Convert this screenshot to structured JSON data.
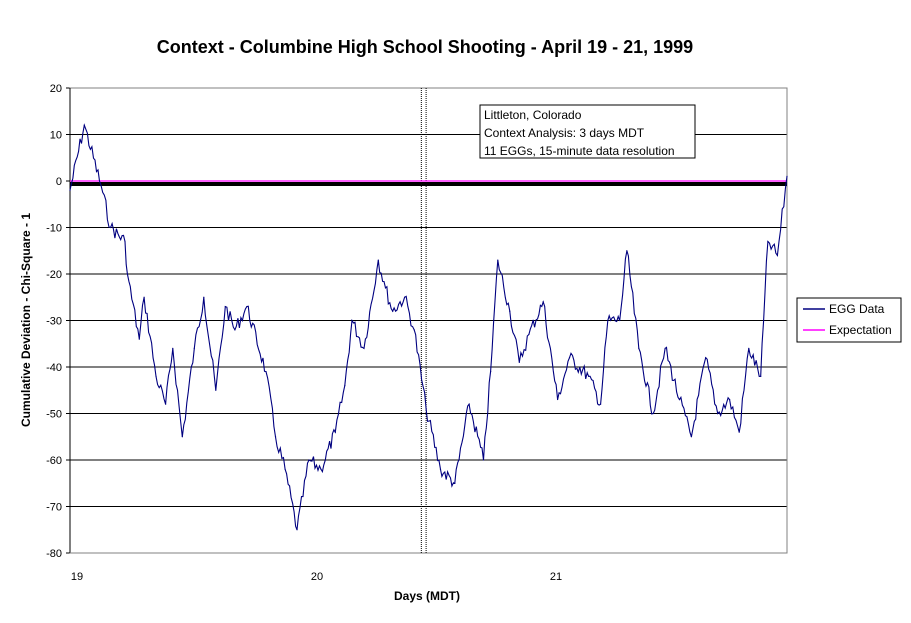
{
  "chart_data": {
    "type": "line",
    "title": "Context - Columbine High School Shooting - April 19 - 21, 1999",
    "xlabel": "Days (MDT)",
    "ylabel": "Cumulative Deviation - Chi-Square - 1",
    "xlim": [
      19,
      22
    ],
    "ylim": [
      -80,
      20
    ],
    "x_ticks": [
      19,
      20,
      21
    ],
    "x_tick_labels": [
      "19",
      "20",
      "21"
    ],
    "y_ticks": [
      20,
      10,
      0,
      -10,
      -20,
      -30,
      -40,
      -50,
      -60,
      -70,
      -80
    ],
    "grid": "horizontal",
    "legend": "right",
    "annotation": [
      "Littleton, Colorado",
      "Context Analysis: 3 days MDT",
      "11 EGGs, 15-minute data resolution"
    ],
    "event_markers": [
      20.47,
      20.49
    ],
    "series": [
      {
        "name": "EGG Data",
        "color": "#000080",
        "x": [
          19.0,
          19.06,
          19.13,
          19.17,
          19.23,
          19.24,
          19.29,
          19.31,
          19.36,
          19.4,
          19.43,
          19.47,
          19.52,
          19.56,
          19.61,
          19.65,
          19.69,
          19.74,
          19.82,
          19.86,
          19.9,
          19.95,
          20.0,
          20.05,
          20.11,
          20.15,
          20.18,
          20.23,
          20.29,
          20.32,
          20.35,
          20.4,
          20.44,
          20.49,
          20.55,
          20.61,
          20.67,
          20.73,
          20.76,
          20.79,
          20.84,
          20.88,
          20.92,
          20.98,
          21.04,
          21.09,
          21.17,
          21.22,
          21.25,
          21.3,
          21.33,
          21.38,
          21.44,
          21.49,
          21.55,
          21.6,
          21.66,
          21.71,
          21.76,
          21.8,
          21.84,
          21.89,
          21.92,
          21.96,
          22.0
        ],
        "y": [
          -2,
          12,
          -1,
          -10,
          -13,
          -20,
          -34,
          -25,
          -42,
          -48,
          -36,
          -55,
          -36,
          -25,
          -45,
          -27,
          -32,
          -27,
          -41,
          -55,
          -62,
          -75,
          -60,
          -62,
          -54,
          -44,
          -30,
          -36,
          -17,
          -23,
          -28,
          -25,
          -32,
          -49,
          -62,
          -65,
          -48,
          -60,
          -41,
          -17,
          -28,
          -39,
          -33,
          -26,
          -47,
          -38,
          -42,
          -48,
          -30,
          -30,
          -15,
          -36,
          -50,
          -36,
          -47,
          -55,
          -38,
          -50,
          -47,
          -54,
          -36,
          -42,
          -13,
          -16,
          1
        ]
      },
      {
        "name": "Expectation",
        "color": "#FF00FF",
        "x": [
          19,
          22
        ],
        "y": [
          0,
          0
        ]
      }
    ]
  }
}
